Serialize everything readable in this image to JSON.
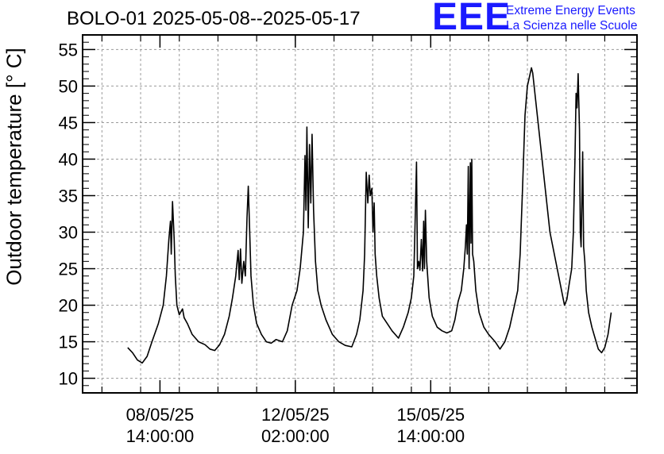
{
  "header": {
    "title": "BOLO-01 2025-05-08--2025-05-17",
    "logo_mark": "EEE",
    "logo_line1": "Extreme Energy Events",
    "logo_line2": "La Scienza nelle Scuole",
    "logo_color": "#1a1aff"
  },
  "chart_data": {
    "type": "line",
    "title": "BOLO-01 2025-05-08--2025-05-17",
    "ylabel": "Outdoor temperature [° C]",
    "xlabel": "",
    "ylim": [
      8,
      57
    ],
    "xlim_hours": [
      -132,
      212
    ],
    "y_ticks": [
      10,
      15,
      20,
      25,
      30,
      35,
      40,
      45,
      50,
      55
    ],
    "x_tick_labels": [
      {
        "date": "08/05/25",
        "time": "14:00:00"
      },
      {
        "date": "12/05/25",
        "time": "02:00:00"
      },
      {
        "date": "15/05/25",
        "time": "14:00:00"
      }
    ],
    "grid": true,
    "series": [
      {
        "color": "#000000",
        "points": [
          [
            -104,
            14.2
          ],
          [
            -101,
            13.5
          ],
          [
            -98,
            12.5
          ],
          [
            -95,
            12.1
          ],
          [
            -92,
            13.0
          ],
          [
            -89,
            15.0
          ],
          [
            -85,
            17.5
          ],
          [
            -82,
            20.0
          ],
          [
            -80,
            24.0
          ],
          [
            -78.5,
            29.0
          ],
          [
            -77.5,
            31.5
          ],
          [
            -77,
            27.0
          ],
          [
            -76.2,
            34.2
          ],
          [
            -75.2,
            29.0
          ],
          [
            -74.5,
            24.0
          ],
          [
            -73.5,
            20.0
          ],
          [
            -72,
            18.7
          ],
          [
            -70,
            19.5
          ],
          [
            -69,
            18.3
          ],
          [
            -67,
            17.5
          ],
          [
            -64,
            16.0
          ],
          [
            -60,
            15.0
          ],
          [
            -56,
            14.6
          ],
          [
            -53,
            14.0
          ],
          [
            -50,
            13.8
          ],
          [
            -47,
            14.6
          ],
          [
            -44,
            16.0
          ],
          [
            -41,
            18.5
          ],
          [
            -39,
            21.0
          ],
          [
            -37,
            24.0
          ],
          [
            -35.5,
            27.5
          ],
          [
            -34.8,
            23.5
          ],
          [
            -34,
            27.7
          ],
          [
            -33.2,
            23.0
          ],
          [
            -32,
            26.0
          ],
          [
            -31,
            24.0
          ],
          [
            -30,
            32.0
          ],
          [
            -29.2,
            36.3
          ],
          [
            -28.3,
            30.0
          ],
          [
            -27.5,
            24.0
          ],
          [
            -26,
            20.0
          ],
          [
            -24,
            17.5
          ],
          [
            -21,
            16.0
          ],
          [
            -18,
            15.0
          ],
          [
            -15,
            14.8
          ],
          [
            -12,
            15.3
          ],
          [
            -8,
            15.0
          ],
          [
            -5,
            16.5
          ],
          [
            -2,
            20.0
          ],
          [
            1,
            22.0
          ],
          [
            3,
            25.0
          ],
          [
            5,
            30.0
          ],
          [
            6,
            40.5
          ],
          [
            6.6,
            33.0
          ],
          [
            7.2,
            44.4
          ],
          [
            8,
            30.6
          ],
          [
            8.8,
            42.0
          ],
          [
            9.6,
            34.0
          ],
          [
            10.4,
            43.4
          ],
          [
            11.3,
            33.0
          ],
          [
            12.5,
            26.0
          ],
          [
            14,
            22.0
          ],
          [
            16,
            20.0
          ],
          [
            19,
            18.0
          ],
          [
            23,
            16.0
          ],
          [
            27,
            15.0
          ],
          [
            31,
            14.5
          ],
          [
            35,
            14.3
          ],
          [
            38,
            16.0
          ],
          [
            40,
            18.0
          ],
          [
            42,
            22.0
          ],
          [
            43,
            27.0
          ],
          [
            44,
            38.2
          ],
          [
            45,
            34.0
          ],
          [
            45.8,
            37.8
          ],
          [
            46.5,
            35.0
          ],
          [
            47.5,
            36.0
          ],
          [
            48.2,
            30.0
          ],
          [
            48.9,
            34.0
          ],
          [
            49.5,
            27.0
          ],
          [
            50.5,
            24.0
          ],
          [
            52,
            21.0
          ],
          [
            54,
            18.5
          ],
          [
            57,
            17.5
          ],
          [
            60,
            16.5
          ],
          [
            64,
            15.5
          ],
          [
            67,
            17.0
          ],
          [
            70,
            19.0
          ],
          [
            72,
            21.0
          ],
          [
            73.5,
            24.0
          ],
          [
            74.5,
            33.0
          ],
          [
            75.2,
            39.6
          ],
          [
            75.8,
            25.0
          ],
          [
            76.6,
            26.0
          ],
          [
            77.3,
            24.8
          ],
          [
            78.2,
            29.0
          ],
          [
            79,
            24.7
          ],
          [
            79.6,
            31.5
          ],
          [
            80.1,
            25.0
          ],
          [
            80.7,
            33.0
          ],
          [
            81.5,
            26.0
          ],
          [
            83,
            21.0
          ],
          [
            85,
            18.5
          ],
          [
            88,
            17.0
          ],
          [
            91,
            16.5
          ],
          [
            94,
            16.2
          ],
          [
            97,
            16.5
          ],
          [
            99,
            18.0
          ],
          [
            101,
            20.5
          ],
          [
            103,
            22.0
          ],
          [
            104.5,
            25.0
          ],
          [
            105.5,
            28.0
          ],
          [
            106.2,
            31.0
          ],
          [
            106.7,
            27.0
          ],
          [
            107.3,
            39.0
          ],
          [
            107.8,
            25.0
          ],
          [
            108.6,
            39.5
          ],
          [
            109,
            28.5
          ],
          [
            109.5,
            40.0
          ],
          [
            110,
            27.0
          ],
          [
            110.7,
            26.0
          ],
          [
            112,
            22.0
          ],
          [
            114,
            19.0
          ],
          [
            117,
            17.0
          ],
          [
            120,
            16.0
          ],
          [
            124,
            15.0
          ],
          [
            127,
            14.0
          ],
          [
            130,
            15.0
          ],
          [
            133,
            17.0
          ],
          [
            136,
            20.0
          ],
          [
            138,
            22.0
          ],
          [
            139.5,
            27.0
          ],
          [
            141,
            36.0
          ],
          [
            142.5,
            46.0
          ],
          [
            144,
            50.0
          ],
          [
            145.5,
            51.5
          ],
          [
            146.5,
            52.5
          ],
          [
            147.3,
            51.8
          ],
          [
            158,
            30.0
          ],
          [
            167,
            20.0
          ],
          [
            168.5,
            20.8
          ],
          [
            170,
            23.0
          ],
          [
            171.5,
            25.0
          ],
          [
            172.5,
            30.0
          ],
          [
            173.5,
            40.0
          ],
          [
            174.2,
            49.0
          ],
          [
            174.8,
            47.0
          ],
          [
            175.5,
            51.7
          ],
          [
            176.3,
            44.0
          ],
          [
            176.8,
            30.0
          ],
          [
            177.3,
            28.0
          ],
          [
            177.8,
            34.0
          ],
          [
            178.3,
            41.0
          ],
          [
            178.9,
            28.0
          ],
          [
            179.6,
            26.0
          ],
          [
            180.5,
            22.0
          ],
          [
            182,
            19.0
          ],
          [
            184,
            17.0
          ],
          [
            186,
            15.5
          ],
          [
            188,
            14.0
          ],
          [
            190,
            13.5
          ],
          [
            192,
            14.2
          ],
          [
            194,
            16.0
          ],
          [
            196,
            19.0
          ]
        ]
      }
    ]
  }
}
